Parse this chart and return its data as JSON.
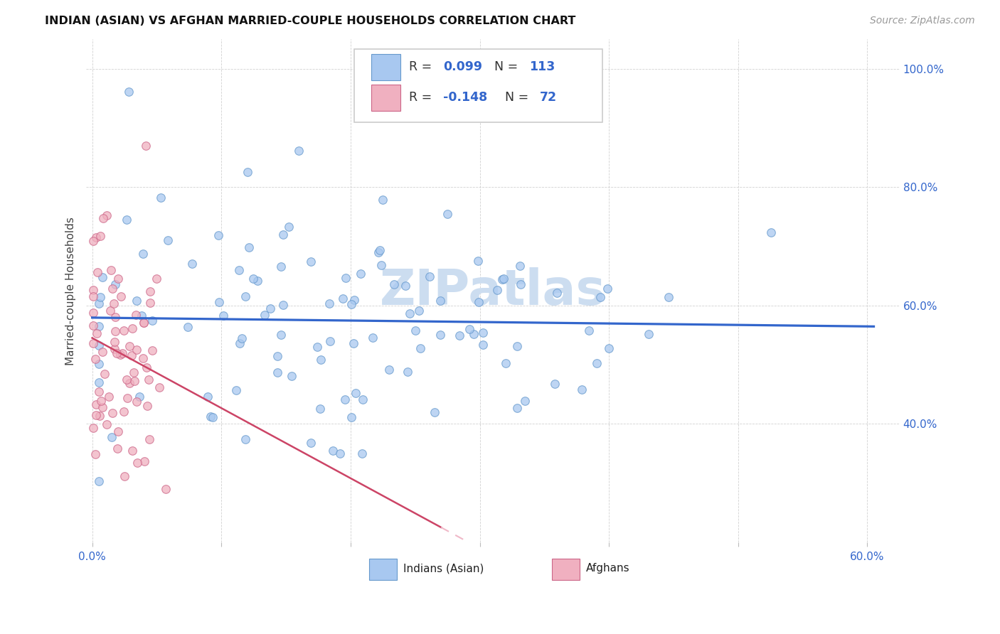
{
  "title": "INDIAN (ASIAN) VS AFGHAN MARRIED-COUPLE HOUSEHOLDS CORRELATION CHART",
  "source": "Source: ZipAtlas.com",
  "xlabel_indian": "Indians (Asian)",
  "xlabel_afghan": "Afghans",
  "ylabel": "Married-couple Households",
  "xlim": [
    -0.005,
    0.625
  ],
  "ylim": [
    0.2,
    1.05
  ],
  "x_ticks": [
    0.0,
    0.1,
    0.2,
    0.3,
    0.4,
    0.5,
    0.6
  ],
  "x_tick_labels_show": [
    "0.0%",
    "",
    "",
    "",
    "",
    "",
    "60.0%"
  ],
  "y_ticks": [
    0.2,
    0.4,
    0.6,
    0.8,
    1.0
  ],
  "y_tick_labels": [
    "",
    "40.0%",
    "60.0%",
    "80.0%",
    "100.0%"
  ],
  "indian_color": "#a8c8f0",
  "afghan_color": "#f0b0c0",
  "indian_line_color": "#3366cc",
  "afghan_line_solid_color": "#cc4466",
  "afghan_line_dash_color": "#f0b8c8",
  "watermark": "ZIPatlas",
  "watermark_color": "#ccddf0",
  "title_fontsize": 11.5,
  "source_fontsize": 10,
  "tick_fontsize": 11,
  "legend_r_val_indian": "0.099",
  "legend_n_val_indian": "113",
  "legend_r_val_afghan": "-0.148",
  "legend_n_val_afghan": "72",
  "legend_text_color": "#333333",
  "legend_num_color": "#3366cc"
}
